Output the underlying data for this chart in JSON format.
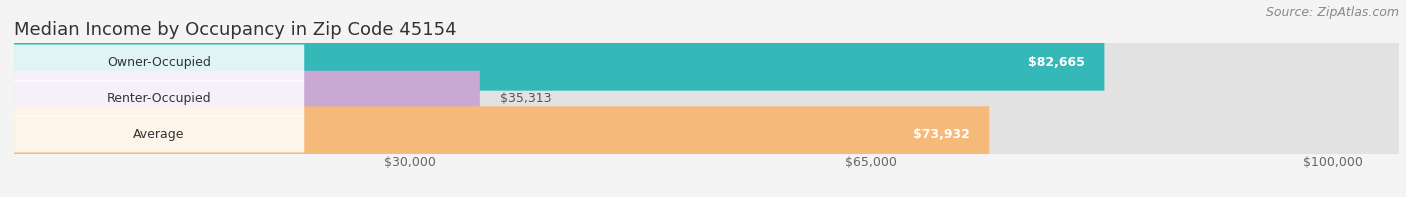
{
  "title": "Median Income by Occupancy in Zip Code 45154",
  "source": "Source: ZipAtlas.com",
  "categories": [
    "Owner-Occupied",
    "Renter-Occupied",
    "Average"
  ],
  "values": [
    82665,
    35313,
    73932
  ],
  "bar_colors": [
    "#35b8b8",
    "#c9a8d4",
    "#f5b97a"
  ],
  "bar_label_colors": [
    "white",
    "#555555",
    "white"
  ],
  "bar_labels": [
    "$82,665",
    "$35,313",
    "$73,932"
  ],
  "label_inside": [
    true,
    false,
    true
  ],
  "x_ticks": [
    30000,
    65000,
    100000
  ],
  "x_tick_labels": [
    "$30,000",
    "$65,000",
    "$100,000"
  ],
  "xmax": 105000,
  "background_color": "#f4f4f4",
  "bar_bg_color": "#e2e2e2",
  "title_fontsize": 13,
  "cat_fontsize": 9,
  "val_fontsize": 9,
  "tick_fontsize": 9,
  "source_fontsize": 9
}
